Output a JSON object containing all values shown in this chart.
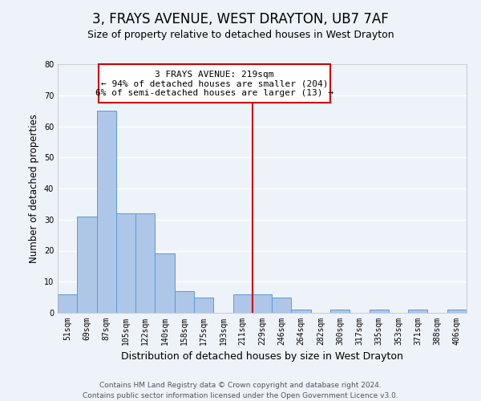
{
  "title": "3, FRAYS AVENUE, WEST DRAYTON, UB7 7AF",
  "subtitle": "Size of property relative to detached houses in West Drayton",
  "xlabel": "Distribution of detached houses by size in West Drayton",
  "ylabel": "Number of detached properties",
  "bin_labels": [
    "51sqm",
    "69sqm",
    "87sqm",
    "105sqm",
    "122sqm",
    "140sqm",
    "158sqm",
    "175sqm",
    "193sqm",
    "211sqm",
    "229sqm",
    "246sqm",
    "264sqm",
    "282sqm",
    "300sqm",
    "317sqm",
    "335sqm",
    "353sqm",
    "371sqm",
    "388sqm",
    "406sqm"
  ],
  "bar_heights": [
    6,
    31,
    65,
    32,
    32,
    19,
    7,
    5,
    0,
    6,
    6,
    5,
    1,
    0,
    1,
    0,
    1,
    0,
    1,
    0,
    1
  ],
  "bar_color": "#aec6e8",
  "bar_edge_color": "#5b9bd5",
  "ylim": [
    0,
    80
  ],
  "yticks": [
    0,
    10,
    20,
    30,
    40,
    50,
    60,
    70,
    80
  ],
  "property_line_x": 9.5,
  "property_line_color": "#cc0000",
  "annotation_box_color": "#cc0000",
  "annotation_text_line1": "3 FRAYS AVENUE: 219sqm",
  "annotation_text_line2": "← 94% of detached houses are smaller (204)",
  "annotation_text_line3": "6% of semi-detached houses are larger (13) →",
  "footer_line1": "Contains HM Land Registry data © Crown copyright and database right 2024.",
  "footer_line2": "Contains public sector information licensed under the Open Government Licence v3.0.",
  "background_color": "#eef2f9",
  "plot_background_color": "#eef2f9",
  "grid_color": "#ffffff",
  "title_fontsize": 12,
  "subtitle_fontsize": 9,
  "xlabel_fontsize": 9,
  "ylabel_fontsize": 8.5,
  "tick_fontsize": 7,
  "annotation_fontsize": 8,
  "footer_fontsize": 6.5
}
